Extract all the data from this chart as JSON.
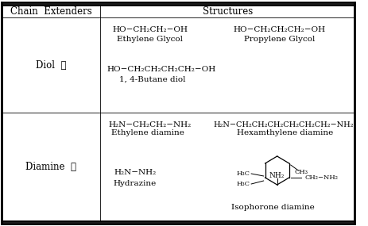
{
  "col1_header": "Chain  Extenders",
  "col2_header": "Structures",
  "row1_label": "Diol  玕",
  "row2_label": "Diamine  玕",
  "structures": {
    "ethylene_glycol_formula": "HO−CH₂CH₂−OH",
    "ethylene_glycol_name": "Ethylene Glycol",
    "propylene_glycol_formula": "HO−CH₂CH₂CH₂−OH",
    "propylene_glycol_name": "Propylene Glycol",
    "butane_diol_formula": "HO−CH₂CH₂CH₂CH₂−OH",
    "butane_diol_name": "1, 4-Butane diol",
    "ethylene_diamine_formula": "H₂N−CH₂CH₂−NH₂",
    "ethylene_diamine_name": "Ethylene diamine",
    "hexamthylene_diamine_formula": "H₂N−CH₂CH₂CH₂CH₂CH₂CH₂−NH₂",
    "hexamthylene_diamine_name": "Hexamthylene diamine",
    "hydrazine_formula": "H₂N−NH₂",
    "hydrazine_name": "Hydrazine",
    "isophorone_name": "Isophorone diamine",
    "nh2": "NH₂",
    "h3c": "H₃C",
    "ch3": "CH₃",
    "ch2nh2": "CH₂−NH₂"
  }
}
